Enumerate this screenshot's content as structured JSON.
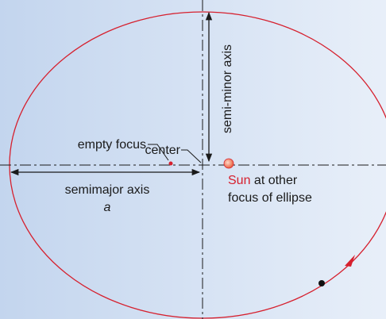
{
  "labels": {
    "center": "center",
    "empty_focus": "empty focus",
    "semi_minor": "semi-minor axis",
    "semimajor": "semimajor axis",
    "a": "a",
    "sun": "Sun",
    "sun_rest": "at other",
    "sun_line2": "focus of ellipse"
  }
}
